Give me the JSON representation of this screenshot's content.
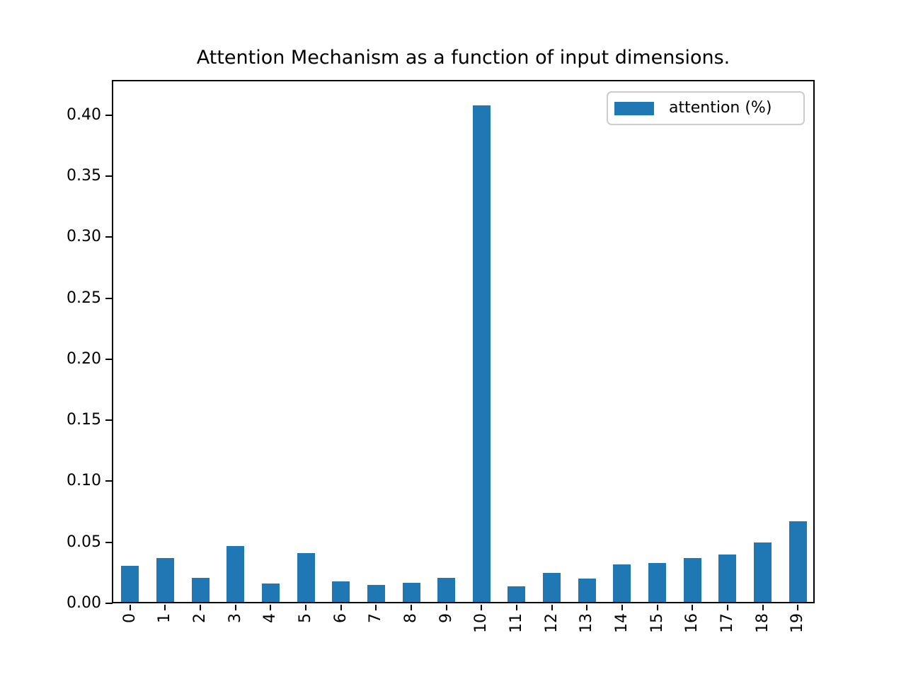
{
  "figure": {
    "background": "#ffffff",
    "spine_color": "#000000"
  },
  "header": {
    "title": "Attention Mechanism as a function of input dimensions."
  },
  "legend": {
    "label": "attention (%)",
    "swatch_color": "#1f77b4",
    "position": "upper right"
  },
  "chart_data": {
    "type": "bar",
    "title": "Attention Mechanism as a function of input dimensions.",
    "categories": [
      "0",
      "1",
      "2",
      "3",
      "4",
      "5",
      "6",
      "7",
      "8",
      "9",
      "10",
      "11",
      "12",
      "13",
      "14",
      "15",
      "16",
      "17",
      "18",
      "19"
    ],
    "series": [
      {
        "name": "attention (%)",
        "values": [
          0.031,
          0.037,
          0.021,
          0.047,
          0.016,
          0.041,
          0.018,
          0.015,
          0.017,
          0.021,
          0.408,
          0.014,
          0.025,
          0.02,
          0.032,
          0.033,
          0.037,
          0.04,
          0.05,
          0.067
        ]
      }
    ],
    "bar_color": "#1f77b4",
    "xlabel": "",
    "ylabel": "",
    "ylim": [
      0,
      0.429
    ],
    "yticks": [
      0.0,
      0.05,
      0.1,
      0.15,
      0.2,
      0.25,
      0.3,
      0.35,
      0.4
    ],
    "ytick_labels": [
      "0.00",
      "0.05",
      "0.10",
      "0.15",
      "0.20",
      "0.25",
      "0.30",
      "0.35",
      "0.40"
    ],
    "xtick_rotation_deg": 90,
    "grid": false,
    "legend_position": "upper right",
    "bar_relative_width": 0.5
  }
}
